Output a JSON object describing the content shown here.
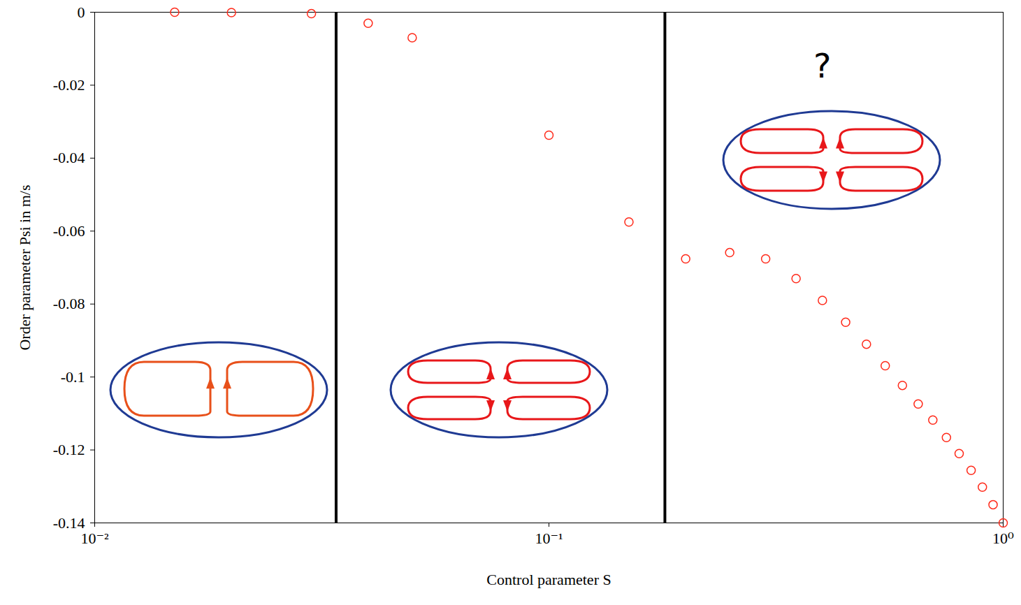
{
  "chart_data": {
    "type": "scatter",
    "x_label": "Control parameter S",
    "y_label": "Order parameter Psi in m/s",
    "log": "x",
    "marker": "circle",
    "color": "#ff2a1a",
    "x": [
      0.015,
      0.02,
      0.03,
      0.04,
      0.05,
      0.1,
      0.15,
      0.2,
      0.25,
      0.3,
      0.35,
      0.4,
      0.45,
      0.5,
      0.55,
      0.6,
      0.65,
      0.7,
      0.75,
      0.8,
      0.85,
      0.9,
      0.95,
      1.0
    ],
    "values": [
      0,
      -0.0001,
      -0.0004,
      -0.003,
      -0.007,
      -0.0337,
      -0.0575,
      -0.0676,
      -0.0659,
      -0.0676,
      -0.073,
      -0.079,
      -0.085,
      -0.091,
      -0.0969,
      -0.1023,
      -0.1074,
      -0.1118,
      -0.1166,
      -0.121,
      -0.1256,
      -0.1302,
      -0.135,
      -0.14
    ],
    "xlim": [
      0.01,
      1
    ],
    "ylim": [
      -0.14,
      0
    ],
    "xticks": [
      {
        "value": 0.01,
        "label": "10⁻²"
      },
      {
        "value": 0.1,
        "label": "10⁻¹"
      },
      {
        "value": 1,
        "label": "10⁰"
      }
    ],
    "yticks": [
      0,
      -0.02,
      -0.04,
      -0.06,
      -0.08,
      -0.1,
      -0.12,
      -0.14
    ],
    "vertical_lines": [
      0.034,
      0.18
    ],
    "annotations": [
      {
        "text": "?",
        "x": 0.4,
        "y": -0.015
      }
    ]
  }
}
